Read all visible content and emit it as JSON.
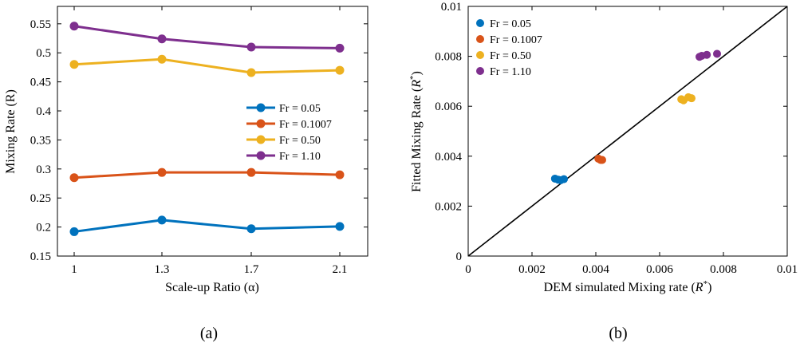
{
  "chart_data": [
    {
      "type": "line",
      "panel_label": "(a)",
      "xlabel": "Scale-up Ratio (α)",
      "ylabel": "Mixing Rate (R)",
      "categories": [
        "1",
        "1.3",
        "1.7",
        "2.1"
      ],
      "ylim": [
        0.15,
        0.58
      ],
      "yticks": [
        0.15,
        0.2,
        0.25,
        0.3,
        0.35,
        0.4,
        0.45,
        0.5,
        0.55
      ],
      "ytick_labels": [
        "0.15",
        "0.2",
        "0.25",
        "0.3",
        "0.35",
        "0.4",
        "0.45",
        "0.5",
        "0.55"
      ],
      "legend_position": "center-right",
      "series": [
        {
          "name": "Fr = 0.05",
          "color": "#0072BD",
          "values": [
            0.192,
            0.212,
            0.197,
            0.201
          ]
        },
        {
          "name": "Fr = 0.1007",
          "color": "#D95319",
          "values": [
            0.285,
            0.294,
            0.294,
            0.29
          ]
        },
        {
          "name": "Fr = 0.50",
          "color": "#EDB120",
          "values": [
            0.48,
            0.489,
            0.466,
            0.47
          ]
        },
        {
          "name": "Fr = 1.10",
          "color": "#7E2F8E",
          "values": [
            0.546,
            0.524,
            0.51,
            0.508
          ]
        }
      ]
    },
    {
      "type": "scatter",
      "panel_label": "(b)",
      "xlabel": "DEM simulated Mixing rate (R*)",
      "ylabel": "Fitted Mixing Rate (R*)",
      "xlim": [
        0,
        0.01
      ],
      "ylim": [
        0,
        0.01
      ],
      "xticks": [
        0,
        0.002,
        0.004,
        0.006,
        0.008,
        0.01
      ],
      "xtick_labels": [
        "0",
        "0.002",
        "0.004",
        "0.006",
        "0.008",
        "0.01"
      ],
      "yticks": [
        0,
        0.002,
        0.004,
        0.006,
        0.008,
        0.01
      ],
      "ytick_labels": [
        "0",
        "0.002",
        "0.004",
        "0.006",
        "0.008",
        "0.01"
      ],
      "reference_line": "y = x",
      "legend_position": "top-left",
      "series": [
        {
          "name": "Fr = 0.05",
          "color": "#0072BD",
          "x": [
            0.00272,
            0.00282,
            0.0029,
            0.003
          ],
          "y": [
            0.0031,
            0.00306,
            0.00304,
            0.00308
          ]
        },
        {
          "name": "Fr = 0.1007",
          "color": "#D95319",
          "x": [
            0.00408,
            0.00415,
            0.0042
          ],
          "y": [
            0.0039,
            0.00385,
            0.00385
          ]
        },
        {
          "name": "Fr = 0.50",
          "color": "#EDB120",
          "x": [
            0.00668,
            0.00675,
            0.0069,
            0.007
          ],
          "y": [
            0.00628,
            0.00624,
            0.00636,
            0.00632
          ]
        },
        {
          "name": "Fr = 1.10",
          "color": "#7E2F8E",
          "x": [
            0.00725,
            0.00732,
            0.00748,
            0.0078
          ],
          "y": [
            0.00798,
            0.00802,
            0.00806,
            0.0081
          ]
        }
      ]
    }
  ]
}
